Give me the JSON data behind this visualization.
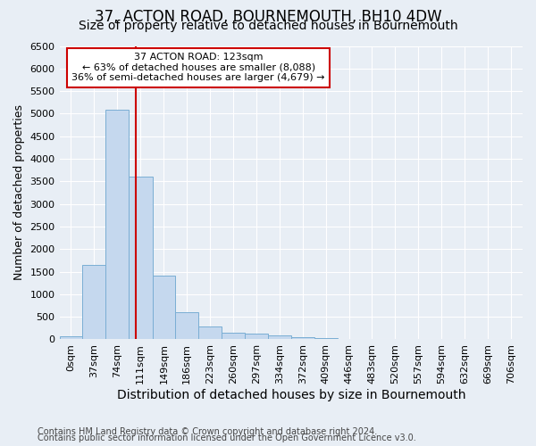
{
  "title": "37, ACTON ROAD, BOURNEMOUTH, BH10 4DW",
  "subtitle": "Size of property relative to detached houses in Bournemouth",
  "xlabel": "Distribution of detached houses by size in Bournemouth",
  "ylabel": "Number of detached properties",
  "footer_line1": "Contains HM Land Registry data © Crown copyright and database right 2024.",
  "footer_line2": "Contains public sector information licensed under the Open Government Licence v3.0.",
  "bar_edges": [
    0,
    37,
    74,
    111,
    149,
    186,
    223,
    260,
    297,
    334,
    372,
    409,
    446,
    483,
    520,
    557,
    594,
    632,
    669,
    706,
    743
  ],
  "bar_heights": [
    60,
    1650,
    5080,
    3600,
    1420,
    610,
    295,
    150,
    120,
    85,
    50,
    25,
    5,
    0,
    0,
    0,
    0,
    0,
    0,
    0
  ],
  "bar_color": "#c5d8ee",
  "bar_edge_color": "#7aaed4",
  "vline_x": 123,
  "vline_color": "#cc0000",
  "annotation_text": "37 ACTON ROAD: 123sqm\n← 63% of detached houses are smaller (8,088)\n36% of semi-detached houses are larger (4,679) →",
  "annotation_box_color": "#ffffff",
  "annotation_box_edge_color": "#cc0000",
  "ylim": [
    0,
    6500
  ],
  "yticks": [
    0,
    500,
    1000,
    1500,
    2000,
    2500,
    3000,
    3500,
    4000,
    4500,
    5000,
    5500,
    6000,
    6500
  ],
  "background_color": "#e8eef5",
  "grid_color": "#ffffff",
  "title_fontsize": 12,
  "subtitle_fontsize": 10,
  "xlabel_fontsize": 10,
  "ylabel_fontsize": 9,
  "tick_fontsize": 8,
  "annotation_fontsize": 8,
  "footer_fontsize": 7
}
